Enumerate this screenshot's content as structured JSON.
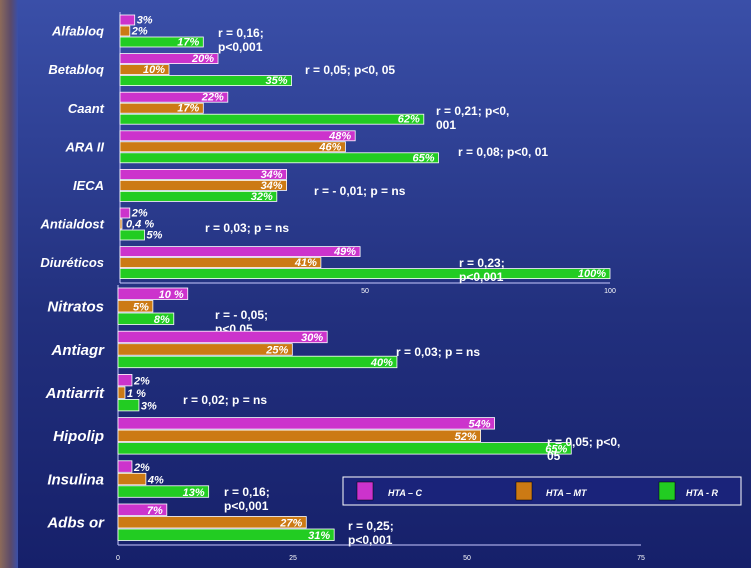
{
  "colors": {
    "HTA_C": "#cc33cc",
    "HTA_MT": "#cc7a14",
    "HTA_R": "#22cc22"
  },
  "chart_data": [
    {
      "type": "bar",
      "orientation": "horizontal",
      "xlim": [
        0,
        100
      ],
      "xticks": [
        "50",
        "100"
      ],
      "series_keys": [
        "HTA_C",
        "HTA_MT",
        "HTA_R"
      ],
      "categories": [
        {
          "name": "Alfabloq",
          "values": [
            3,
            2,
            17
          ],
          "labels": [
            "3%",
            "2%",
            "17%"
          ],
          "annotation": [
            "r = 0,16;",
            "p<0,001"
          ]
        },
        {
          "name": "Betabloq",
          "values": [
            20,
            10,
            35
          ],
          "labels": [
            "20%",
            "10%",
            "35%"
          ],
          "annotation": [
            "r = 0,05;  p<0, 05"
          ]
        },
        {
          "name": "Caant",
          "values": [
            22,
            17,
            62
          ],
          "labels": [
            "22%",
            "17%",
            "62%"
          ],
          "annotation": [
            "r = 0,21;  p<0,",
            "001"
          ]
        },
        {
          "name": "ARA II",
          "values": [
            48,
            46,
            65
          ],
          "labels": [
            "48%",
            "46%",
            "65%"
          ],
          "annotation": [
            "r = 0,08;  p<0, 01"
          ]
        },
        {
          "name": "IECA",
          "values": [
            34,
            34,
            32
          ],
          "labels": [
            "34%",
            "34%",
            "32%"
          ],
          "annotation": [
            "r = - 0,01;  p = ns"
          ]
        },
        {
          "name": "Antialdost",
          "values": [
            2,
            0.4,
            5
          ],
          "labels": [
            "2%",
            "0,4 %",
            "5%"
          ],
          "annotation": [
            "r = 0,03;  p = ns"
          ]
        },
        {
          "name": "Diuréticos",
          "values": [
            49,
            41,
            100
          ],
          "labels": [
            "49%",
            "41%",
            "100%"
          ],
          "annotation": [
            "r = 0,23;",
            "p<0,001"
          ]
        }
      ]
    },
    {
      "type": "bar",
      "orientation": "horizontal",
      "xlim": [
        0,
        75
      ],
      "xticks": [
        "0",
        "25",
        "50",
        "75"
      ],
      "series_keys": [
        "HTA_C",
        "HTA_MT",
        "HTA_R"
      ],
      "categories": [
        {
          "name": "Nitratos",
          "values": [
            10,
            5,
            8
          ],
          "labels": [
            "10 %",
            "5%",
            "8%"
          ],
          "annotation": [
            "r = - 0,05;",
            "p<0,05"
          ]
        },
        {
          "name": "Antiagr",
          "values": [
            30,
            25,
            40
          ],
          "labels": [
            "30%",
            "25%",
            "40%"
          ],
          "annotation": [
            "r = 0,03;  p = ns"
          ]
        },
        {
          "name": "Antiarrit",
          "values": [
            2,
            1,
            3
          ],
          "labels": [
            "2%",
            "1 %",
            "3%"
          ],
          "annotation": [
            "r = 0,02;  p = ns"
          ]
        },
        {
          "name": "Hipolip",
          "values": [
            54,
            52,
            65
          ],
          "labels": [
            "54%",
            "52%",
            "65%"
          ],
          "annotation": [
            "r = 0,05;  p<0,",
            "05"
          ]
        },
        {
          "name": "Insulina",
          "values": [
            2,
            4,
            13
          ],
          "labels": [
            "2%",
            "4%",
            "13%"
          ],
          "annotation": [
            "r = 0,16;",
            "p<0,001"
          ]
        },
        {
          "name": "Adbs or",
          "values": [
            7,
            27,
            31
          ],
          "labels": [
            "7%",
            "27%",
            "31%"
          ],
          "annotation": [
            "r = 0,25;",
            "p<0,001"
          ]
        }
      ]
    }
  ],
  "legend": [
    {
      "key": "HTA_C",
      "label": "HTA – C"
    },
    {
      "key": "HTA_MT",
      "label": "HTA – MT"
    },
    {
      "key": "HTA_R",
      "label": "HTA - R"
    }
  ]
}
